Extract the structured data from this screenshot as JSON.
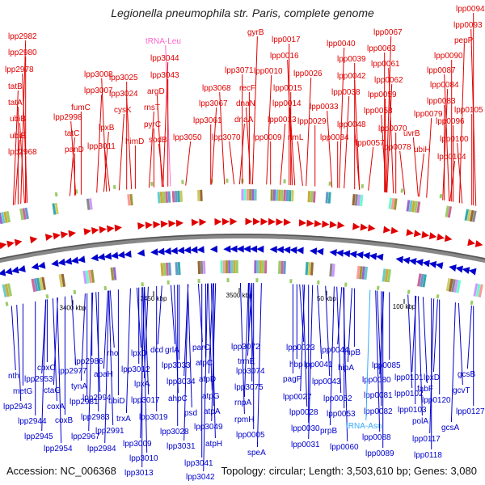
{
  "title": "Legionella pneumophila str. Paris, complete genome",
  "footer": {
    "accession": "Accession: NC_006368",
    "summary": "Topology: circular; Length: 3,503,610 bp; Genes: 3,080"
  },
  "ticks": [
    "3400 kbp",
    "3450 kbp",
    "3500 kbp",
    "50 kbp",
    "100 kbp"
  ],
  "colors": {
    "forward_strand": "#e00000",
    "reverse_strand": "#0000cc",
    "rna": "#ff66cc",
    "trna_asn": "#33aaff",
    "backbone": "#777777"
  },
  "forward_labels": [
    "lpp2982",
    "lpp2980",
    "lpp2978",
    "tatB",
    "tatA",
    "ubiB",
    "ubiE",
    "lpp2968",
    "lpp2998",
    "tatC",
    "panD",
    "lpp3008",
    "lpp3007",
    "fumC",
    "lpp3011",
    "lpxB",
    "lpp3025",
    "lpp3024",
    "cysK",
    "himD",
    "tRNA-Leu",
    "lpp3044",
    "lpp3043",
    "argD",
    "rnsT",
    "pyrC",
    "sodB",
    "lpp3050",
    "lpp3061",
    "lpp3068",
    "lpp3067",
    "lpp3071",
    "lpp3070",
    "gyrB",
    "recF",
    "dnaN",
    "dnaA",
    "lpp0017",
    "lpp0016",
    "lpp0010",
    "lpp0015",
    "lpp0014",
    "lpp0013",
    "lpp0009",
    "rlmL",
    "lpp0026",
    "lpp0029",
    "lpp0033",
    "lpp0040",
    "lpp0039",
    "lpp0042",
    "lpp0038",
    "lpp0034",
    "lpp0048",
    "lpp0067",
    "lpp0063",
    "lpp0061",
    "lpp0062",
    "lpp0059",
    "lpp0058",
    "lpp0057",
    "lpp0070",
    "lpp0078",
    "lpp0079",
    "lpp0094",
    "lpp0093",
    "pepP",
    "lpp0090",
    "lpp0087",
    "lpp0084",
    "lpp0083",
    "uvrB",
    "ubiH",
    "lpp0096",
    "lpp0100",
    "lpp0104",
    "lpp0105"
  ],
  "reverse_labels": [
    "nth",
    "metG",
    "lpp2953",
    "lpp2943",
    "coxC",
    "ctaG",
    "coxA",
    "lpp2944",
    "lpp2945",
    "lpp2954",
    "coxB",
    "lpp2967",
    "lpp2977",
    "lpp2986",
    "tynA",
    "lpp2994",
    "lpp2981",
    "apaH",
    "rho",
    "lpp2983",
    "lpp2984",
    "lpp2991",
    "ubiD",
    "trxA",
    "lpxD",
    "lpp3012",
    "lpxA",
    "lpp3017",
    "lpp3019",
    "lpp3009",
    "lpp3010",
    "lpp3013",
    "dcd",
    "grlA",
    "lpp3033",
    "lpp3034",
    "ahpC",
    "lpp3028",
    "lpp3031",
    "psd",
    "lpp3041",
    "lpp3042",
    "parC",
    "atpC",
    "atpD",
    "atpG",
    "atpA",
    "lpp3049",
    "atpH",
    "lpp3072",
    "trmE",
    "lpp3074",
    "lpp3075",
    "rnpA",
    "rpmH",
    "lpp0005",
    "speA",
    "lpp0023",
    "hbp",
    "lpp0044",
    "lpp0041",
    "hipB",
    "hipA",
    "lpp0043",
    "pagP",
    "lpp0027",
    "lpp0028",
    "lpp0030",
    "lpp0031",
    "lpp0052",
    "lpp0053",
    "prpB",
    "lpp0060",
    "lpp0085",
    "lpp0080",
    "lpp0081",
    "lpp0082",
    "tRNA-Asn",
    "lpp0088",
    "lpp0089",
    "lpp0101",
    "lpp0102",
    "lpp0103",
    "lpxD",
    "fabF",
    "lpp0120",
    "lpp0117",
    "polA",
    "lpp0118",
    "gcsB",
    "gcvT",
    "lpp0127",
    "gcsA"
  ]
}
